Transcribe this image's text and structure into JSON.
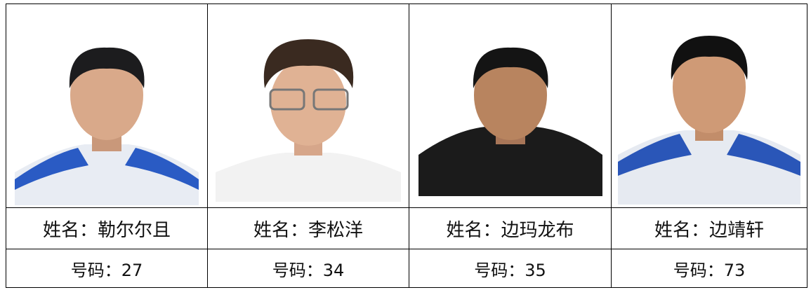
{
  "table": {
    "rows": [
      [
        "姓名：勒尔尔且",
        "姓名：李松洋",
        "姓名：边玛龙布",
        "姓名：边靖轩"
      ],
      [
        "号码：27",
        "号码：34",
        "号码：35",
        "号码：73"
      ]
    ]
  }
}
